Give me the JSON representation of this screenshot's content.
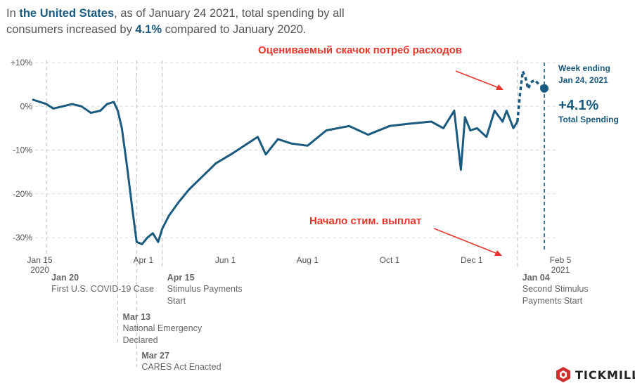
{
  "headline": {
    "part1": "In ",
    "region": "the United States",
    "part2": ", as of January 24 2021, total spending by all consumers increased by ",
    "change": "4.1%",
    "part3": " compared to January 2020."
  },
  "annotations": {
    "spike": "Оцениваемый скачок потреб расходов",
    "stimulus": "Начало стим. выплат"
  },
  "callout": {
    "week_line1": "Week ending",
    "week_line2": "Jan 24, 2021",
    "value": "+4.1%",
    "label": "Total Spending"
  },
  "events": [
    {
      "date": "Jan 20",
      "desc": [
        "First U.S. COVID-19 Case"
      ]
    },
    {
      "date": "Mar 13",
      "desc": [
        "National Emergency",
        "Declared"
      ]
    },
    {
      "date": "Mar 27",
      "desc": [
        "CARES Act Enacted"
      ]
    },
    {
      "date": "Apr 15",
      "desc": [
        "Stimulus Payments",
        "Start"
      ]
    },
    {
      "date": "Jan 04",
      "desc": [
        "Second Stimulus",
        "Payments Start"
      ]
    }
  ],
  "logo": {
    "text": "TICKMILL"
  },
  "colors": {
    "series": "#1a5a7e",
    "annotation": "#e8352c",
    "grid": "#d9d9d9"
  },
  "chart_data": {
    "type": "line",
    "title": "",
    "xlabel": "",
    "ylabel": "",
    "ylim": [
      -33,
      12
    ],
    "y_ticks": [
      "+10%",
      "0%",
      "-10%",
      "-20%",
      "-30%"
    ],
    "x_ticks": [
      {
        "line1": "Jan 15",
        "line2": "2020"
      },
      {
        "line1": "Apr 1",
        "line2": ""
      },
      {
        "line1": "Jun 1",
        "line2": ""
      },
      {
        "line1": "Aug 1",
        "line2": ""
      },
      {
        "line1": "Oct 1",
        "line2": ""
      },
      {
        "line1": "Dec 1",
        "line2": ""
      },
      {
        "line1": "Feb 5",
        "line2": "2021"
      }
    ],
    "x": [
      "2020-01-10",
      "2020-01-15",
      "2020-01-20",
      "2020-01-25",
      "2020-02-01",
      "2020-02-08",
      "2020-02-15",
      "2020-02-22",
      "2020-02-29",
      "2020-03-05",
      "2020-03-10",
      "2020-03-13",
      "2020-03-16",
      "2020-03-20",
      "2020-03-24",
      "2020-03-27",
      "2020-03-31",
      "2020-04-04",
      "2020-04-08",
      "2020-04-12",
      "2020-04-15",
      "2020-04-20",
      "2020-04-27",
      "2020-05-05",
      "2020-05-15",
      "2020-05-25",
      "2020-06-05",
      "2020-06-15",
      "2020-06-25",
      "2020-07-01",
      "2020-07-10",
      "2020-07-20",
      "2020-08-01",
      "2020-08-15",
      "2020-09-01",
      "2020-09-15",
      "2020-10-01",
      "2020-10-15",
      "2020-11-01",
      "2020-11-10",
      "2020-11-18",
      "2020-11-23",
      "2020-11-26",
      "2020-11-30",
      "2020-12-05",
      "2020-12-12",
      "2020-12-18",
      "2020-12-24",
      "2020-12-27",
      "2021-01-01",
      "2021-01-04"
    ],
    "series": [
      {
        "values": [
          1.5,
          1.0,
          0.5,
          -0.5,
          0.0,
          0.5,
          0.0,
          -1.5,
          -1.0,
          0.5,
          1.0,
          -1.0,
          -5.0,
          -14.0,
          -24.0,
          -31.0,
          -31.5,
          -30.0,
          -29.0,
          -31.0,
          -28.0,
          -25.0,
          -22.0,
          -19.0,
          -16.0,
          -13.0,
          -11.0,
          -9.0,
          -7.0,
          -11.0,
          -7.5,
          -8.5,
          -9.0,
          -5.5,
          -4.5,
          -6.5,
          -4.5,
          -4.0,
          -3.5,
          -5.0,
          -1.0,
          -14.5,
          -2.5,
          -5.5,
          -5.0,
          -7.0,
          -1.0,
          -3.5,
          -1.0,
          -5.0,
          -3.5
        ]
      },
      {
        "name": "estimated",
        "x": [
          "2021-01-04",
          "2021-01-06",
          "2021-01-08",
          "2021-01-10",
          "2021-01-12",
          "2021-01-14",
          "2021-01-17",
          "2021-01-20",
          "2021-01-24"
        ],
        "values": [
          -3.5,
          3.0,
          8.0,
          6.5,
          4.0,
          5.5,
          6.0,
          5.0,
          4.1
        ]
      }
    ],
    "grid": true
  }
}
